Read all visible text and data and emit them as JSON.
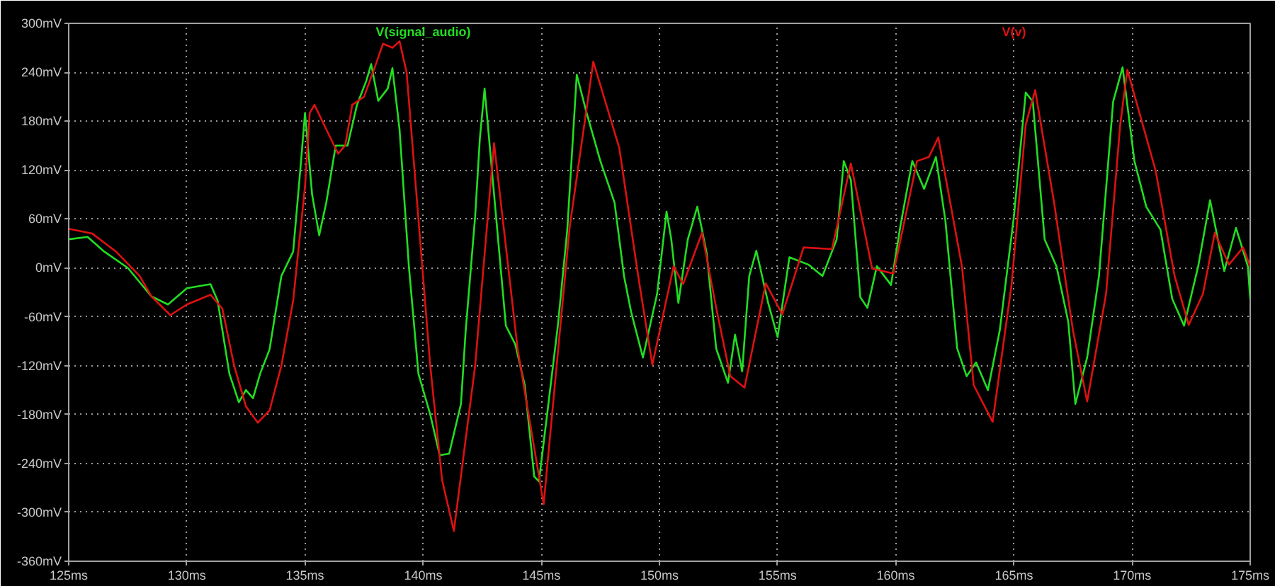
{
  "chart_data": {
    "type": "line",
    "xlim": [
      125,
      175
    ],
    "ylim": [
      -360,
      300
    ],
    "xticks": [
      {
        "value": 125,
        "label": "125ms"
      },
      {
        "value": 130,
        "label": "130ms"
      },
      {
        "value": 135,
        "label": "135ms"
      },
      {
        "value": 140,
        "label": "140ms"
      },
      {
        "value": 145,
        "label": "145ms"
      },
      {
        "value": 150,
        "label": "150ms"
      },
      {
        "value": 155,
        "label": "155ms"
      },
      {
        "value": 160,
        "label": "160ms"
      },
      {
        "value": 165,
        "label": "165ms"
      },
      {
        "value": 170,
        "label": "170ms"
      },
      {
        "value": 175,
        "label": "175ms"
      }
    ],
    "yticks": [
      {
        "value": 300,
        "label": "300mV"
      },
      {
        "value": 240,
        "label": "240mV"
      },
      {
        "value": 180,
        "label": "180mV"
      },
      {
        "value": 120,
        "label": "120mV"
      },
      {
        "value": 60,
        "label": "60mV"
      },
      {
        "value": 0,
        "label": "0mV"
      },
      {
        "value": -60,
        "label": "-60mV"
      },
      {
        "value": -120,
        "label": "-120mV"
      },
      {
        "value": -180,
        "label": "-180mV"
      },
      {
        "value": -240,
        "label": "-240mV"
      },
      {
        "value": -300,
        "label": "-300mV"
      },
      {
        "value": -360,
        "label": "-360mV"
      }
    ],
    "grid": true,
    "line_style": "solid",
    "series": [
      {
        "name": "V(signal_audio)",
        "color": "#22dd22",
        "x": [
          125,
          125.8,
          126.5,
          127.5,
          128.5,
          129.2,
          130,
          131,
          131.3,
          131.8,
          132.2,
          132.5,
          132.8,
          133.1,
          133.5,
          134,
          134.5,
          134.8,
          135,
          135.3,
          135.6,
          135.9,
          136.3,
          136.8,
          137.2,
          137.6,
          137.8,
          138.1,
          138.5,
          138.7,
          139,
          139.4,
          139.8,
          140.3,
          140.7,
          141.1,
          141.6,
          141.8,
          142.2,
          142.4,
          142.6,
          143.1,
          143.5,
          143.9,
          144.3,
          144.7,
          144.9,
          145.3,
          145.7,
          146.1,
          146.5,
          146.9,
          147.5,
          148.1,
          148.5,
          148.8,
          149.3,
          149.9,
          150.3,
          150.5,
          150.8,
          151.2,
          151.6,
          152.0,
          152.4,
          152.9,
          153.2,
          153.5,
          153.8,
          154.1,
          154.6,
          155.0,
          155.5,
          156.3,
          156.9,
          157.5,
          157.8,
          158.1,
          158.5,
          158.8,
          159.2,
          159.8,
          160.2,
          160.7,
          161.2,
          161.7,
          162.1,
          162.6,
          163.0,
          163.4,
          163.9,
          164.4,
          165.0,
          165.5,
          165.8,
          166.3,
          166.8,
          167.3,
          167.6,
          168.1,
          168.6,
          169.2,
          169.6,
          170.1,
          170.6,
          171.2,
          171.7,
          172.2,
          172.8,
          173.3,
          173.9,
          174.4,
          174.9,
          175
        ],
        "values": [
          35,
          38,
          20,
          0,
          -35,
          -45,
          -25,
          -20,
          -40,
          -130,
          -165,
          -150,
          -160,
          -130,
          -100,
          -10,
          20,
          120,
          190,
          90,
          40,
          80,
          150,
          150,
          200,
          230,
          250,
          205,
          220,
          245,
          170,
          0,
          -130,
          -180,
          -230,
          -228,
          -167,
          -77,
          63,
          159,
          220,
          58,
          -71,
          -94,
          -144,
          -256,
          -262,
          -167,
          -71,
          47,
          237,
          192,
          131,
          80,
          -10,
          -54,
          -110,
          -32,
          69,
          35,
          -43,
          35,
          75,
          18,
          -99,
          -141,
          -82,
          -127,
          -10,
          21,
          -43,
          -85,
          13,
          4,
          -10,
          35,
          131,
          108,
          -36,
          -49,
          2,
          -21,
          52,
          131,
          97,
          136,
          58,
          -99,
          -133,
          -116,
          -150,
          -77,
          63,
          215,
          204,
          35,
          2,
          -66,
          -167,
          -110,
          -10,
          204,
          246,
          131,
          75,
          47,
          -38,
          -71,
          2,
          83,
          -4,
          49,
          2,
          -38
        ]
      },
      {
        "name": "V(v)",
        "color": "#dd1111",
        "x": [
          125,
          126,
          127,
          128,
          128.5,
          129.3,
          130,
          131,
          131.5,
          132,
          132.5,
          133,
          133.5,
          134,
          134.5,
          135,
          135.2,
          135.4,
          135.9,
          136.4,
          136.7,
          137,
          137.5,
          138,
          138.3,
          138.7,
          139,
          139.3,
          139.8,
          140.3,
          140.8,
          141.3,
          142.2,
          143.0,
          144.0,
          145.1,
          146.2,
          147.2,
          148.3,
          149.1,
          149.7,
          150.6,
          151.0,
          151.8,
          152.4,
          153.0,
          153.6,
          154.5,
          155.2,
          156.1,
          157.3,
          158.1,
          159.0,
          159.9,
          160.9,
          161.4,
          161.8,
          162.8,
          163.3,
          164.1,
          164.9,
          165.5,
          165.9,
          166.7,
          167.5,
          168.1,
          168.9,
          169.5,
          169.8,
          171.0,
          171.8,
          172.4,
          173.0,
          173.5,
          174.1,
          174.7,
          175
        ],
        "values": [
          48,
          42,
          20,
          -10,
          -35,
          -58,
          -45,
          -33,
          -50,
          -120,
          -170,
          -190,
          -175,
          -120,
          -40,
          100,
          190,
          200,
          170,
          140,
          150,
          200,
          210,
          250,
          275,
          270,
          278,
          240,
          60,
          -120,
          -260,
          -323,
          -120,
          153,
          -100,
          -290,
          50,
          253,
          147,
          -10,
          -119,
          2,
          -20,
          43,
          -49,
          -133,
          -147,
          -19,
          -57,
          25,
          23,
          128,
          -1,
          -7,
          131,
          136,
          160,
          2,
          -144,
          -189,
          -21,
          176,
          218,
          80,
          -77,
          -164,
          -32,
          176,
          243,
          119,
          -10,
          -70,
          -32,
          43,
          4,
          25,
          2
        ]
      }
    ]
  }
}
